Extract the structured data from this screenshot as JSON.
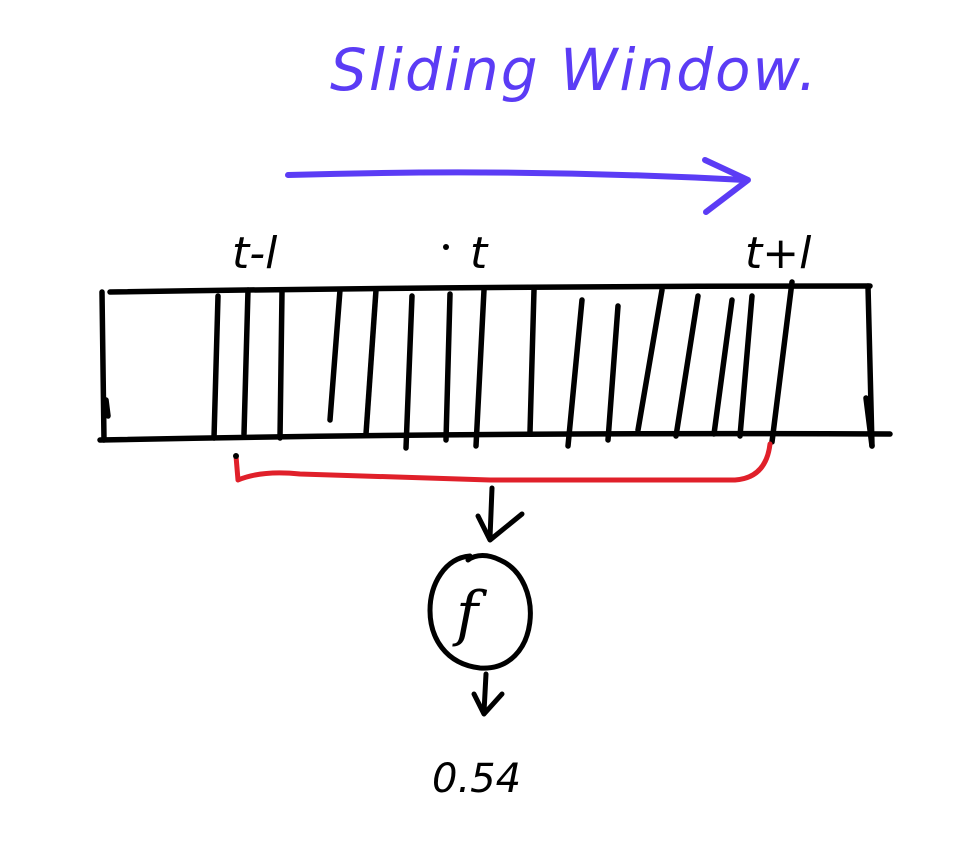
{
  "title": "Sliding Window.",
  "labels": {
    "left": "t-l",
    "center": "t",
    "right": "t+l"
  },
  "function_label": "f",
  "output_value": "0.54",
  "colors": {
    "title": "#5B3CF5",
    "arrow": "#5B3CF5",
    "window_bracket": "#E0202A",
    "ink": "#000000"
  }
}
